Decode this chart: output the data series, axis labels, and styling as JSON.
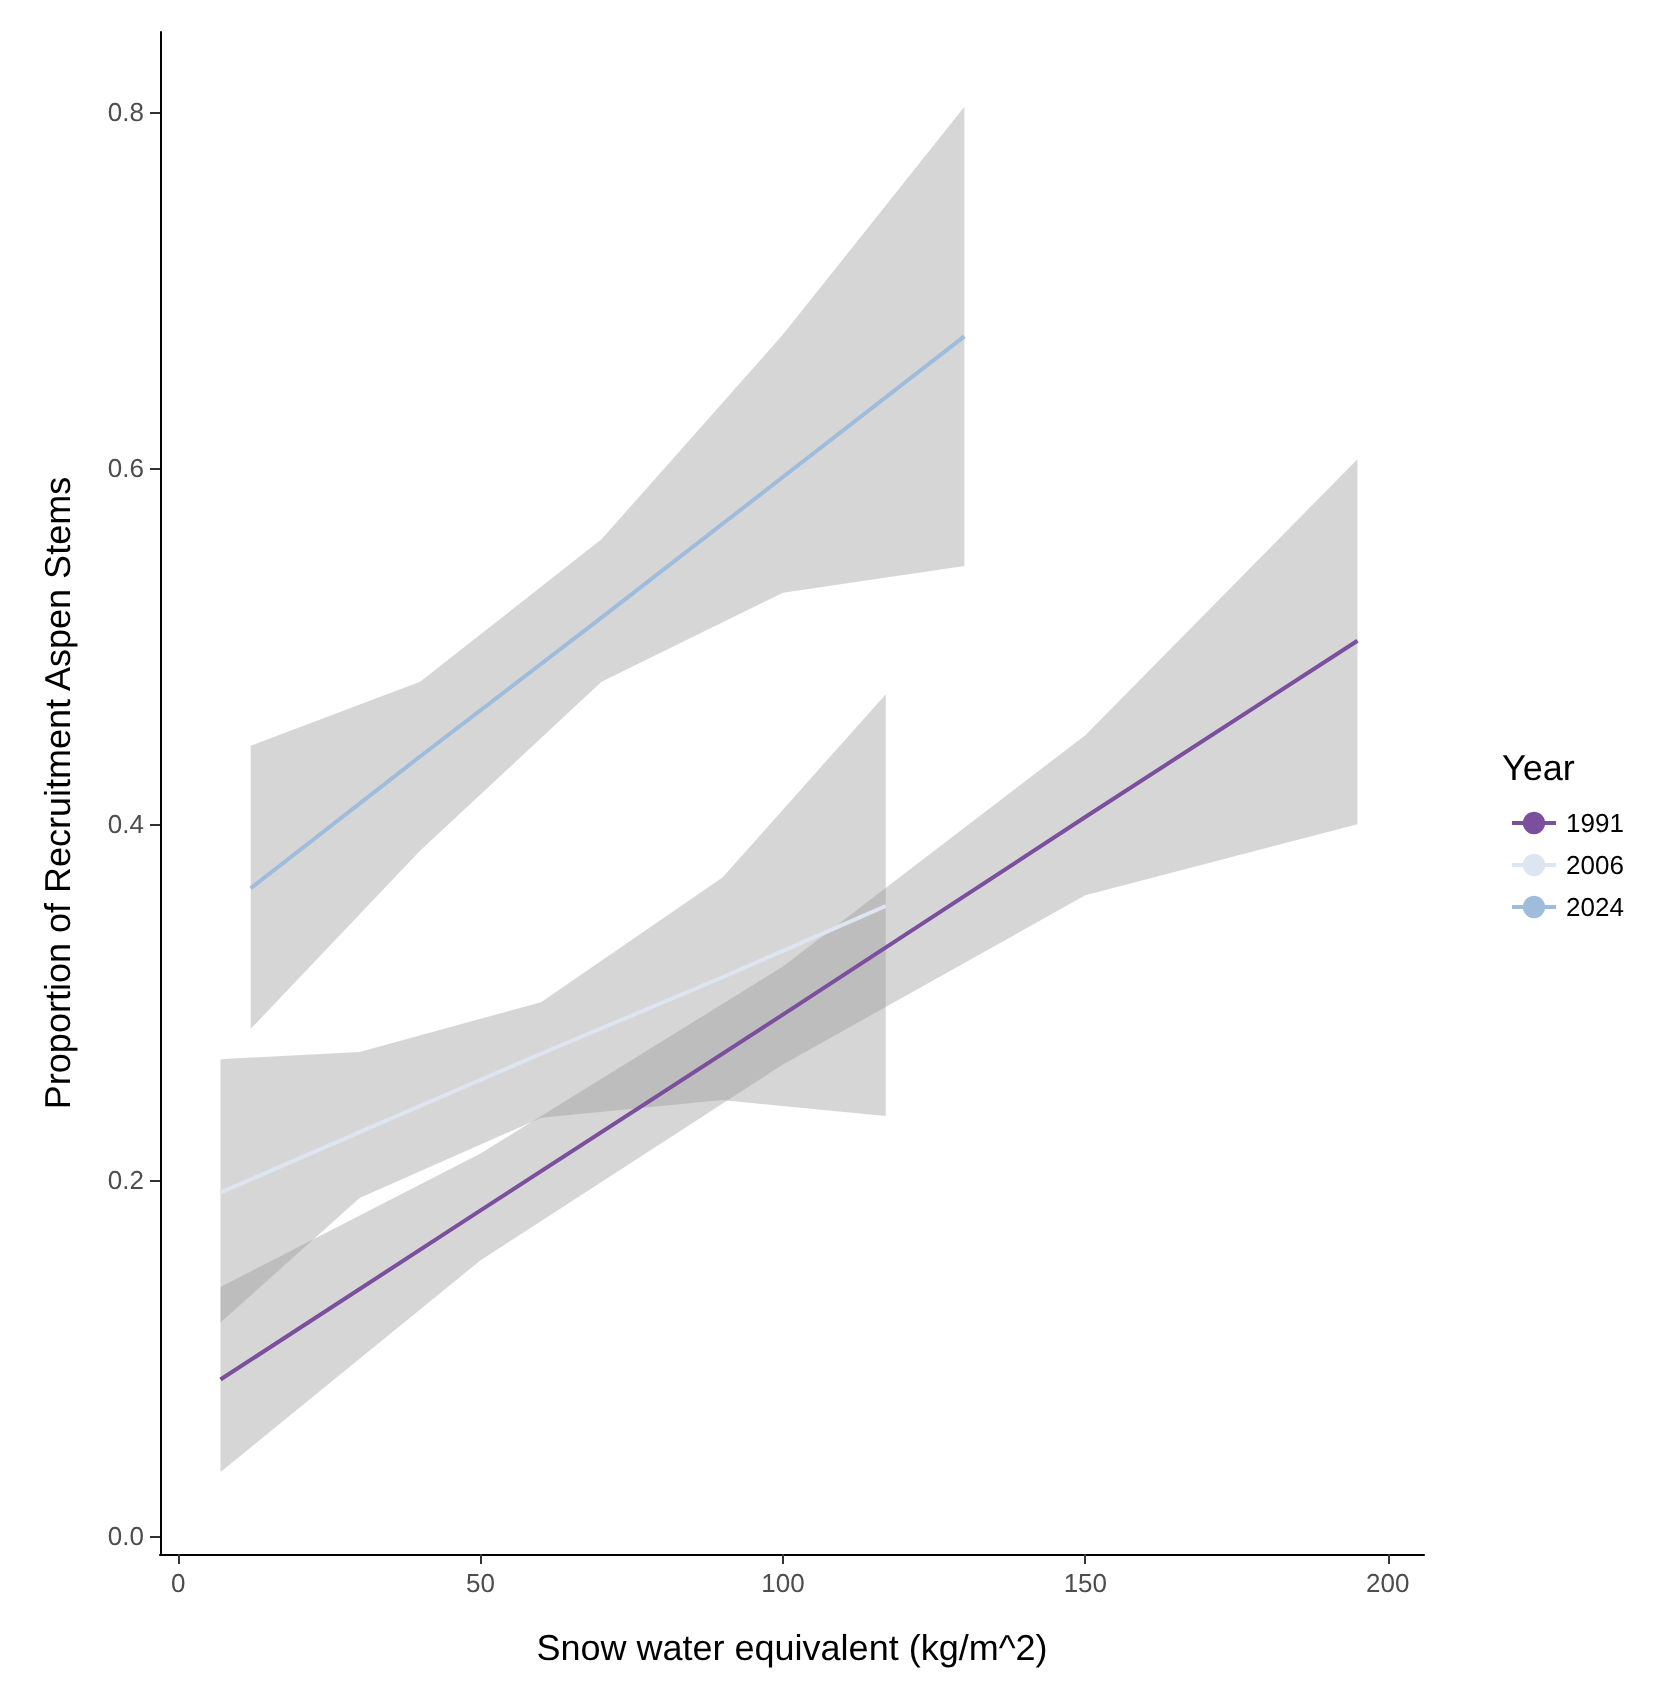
{
  "chart_data": {
    "type": "line",
    "xlabel": "Snow water equivalent (kg/m^2)",
    "ylabel": "Proportion of Recruitment Aspen Stems",
    "legend_title": "Year",
    "legend": "right",
    "grid": false,
    "marker": "none",
    "line_style": "solid",
    "xlim": [
      -3,
      206
    ],
    "xticks": [
      0,
      50,
      100,
      150,
      200
    ],
    "ylim": [
      -0.01,
      0.845
    ],
    "yticks": [
      {
        "value": 0,
        "label": "0.0"
      },
      0.2,
      0.4,
      0.6,
      0.8
    ],
    "series": [
      {
        "name": "1991",
        "color": "#7b4f9d",
        "x": [
          7,
          50,
          100,
          150,
          195
        ],
        "values": [
          0.088,
          0.183,
          0.293,
          0.404,
          0.503
        ],
        "lower": [
          0.036,
          0.155,
          0.265,
          0.36,
          0.4
        ],
        "upper": [
          0.14,
          0.215,
          0.32,
          0.45,
          0.605
        ]
      },
      {
        "name": "2006",
        "color": "#dde6f0",
        "x": [
          7,
          30,
          60,
          90,
          117
        ],
        "values": [
          0.193,
          0.227,
          0.271,
          0.314,
          0.354
        ],
        "lower": [
          0.12,
          0.19,
          0.235,
          0.245,
          0.236
        ],
        "upper": [
          0.268,
          0.272,
          0.3,
          0.37,
          0.473
        ]
      },
      {
        "name": "2024",
        "color": "#9ebcdb",
        "x": [
          12,
          40,
          70,
          100,
          130
        ],
        "values": [
          0.364,
          0.438,
          0.516,
          0.595,
          0.674
        ],
        "lower": [
          0.285,
          0.385,
          0.48,
          0.53,
          0.545
        ],
        "upper": [
          0.444,
          0.48,
          0.56,
          0.675,
          0.803
        ]
      }
    ]
  }
}
